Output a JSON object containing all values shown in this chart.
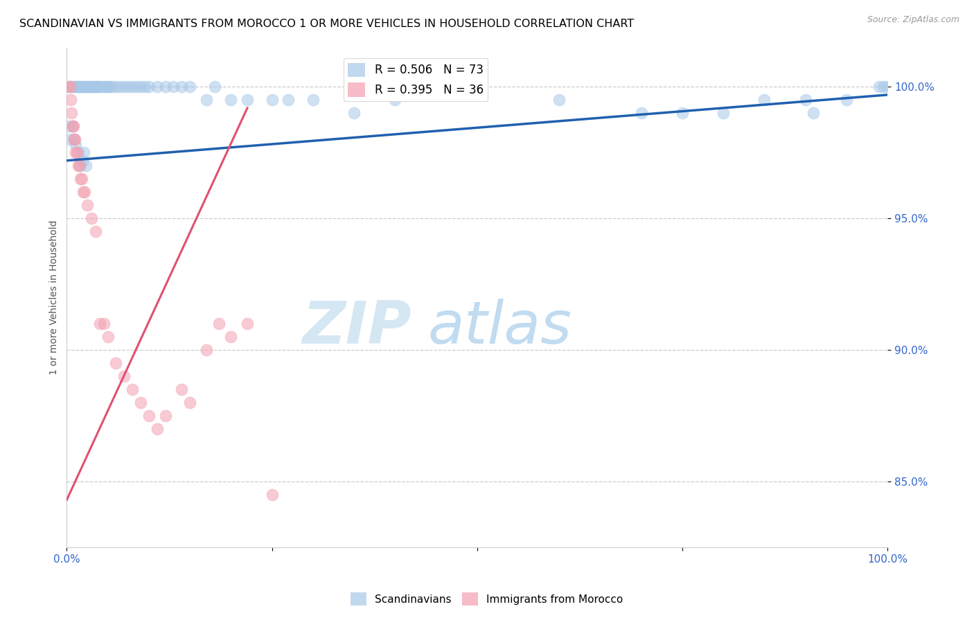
{
  "title": "SCANDINAVIAN VS IMMIGRANTS FROM MOROCCO 1 OR MORE VEHICLES IN HOUSEHOLD CORRELATION CHART",
  "source": "Source: ZipAtlas.com",
  "ylabel": "1 or more Vehicles in Household",
  "x_range": [
    0,
    100
  ],
  "y_range": [
    82.5,
    101.5
  ],
  "legend_blue_label": "R = 0.506   N = 73",
  "legend_pink_label": "R = 0.395   N = 36",
  "legend_bottom_blue": "Scandinavians",
  "legend_bottom_pink": "Immigrants from Morocco",
  "blue_color": "#a8c8e8",
  "pink_color": "#f4a0b0",
  "blue_line_color": "#2060b0",
  "pink_line_color": "#e05070",
  "watermark_zip": "ZIP",
  "watermark_atlas": "atlas",
  "y_ticks": [
    85,
    90,
    95,
    100
  ],
  "y_tick_labels": [
    "85.0%",
    "90.0%",
    "95.0%",
    "100.0%"
  ],
  "blue_scatter_x": [
    0.3,
    0.5,
    0.6,
    0.8,
    1.0,
    1.2,
    1.3,
    1.5,
    1.6,
    1.8,
    2.0,
    2.2,
    2.4,
    2.5,
    2.6,
    2.8,
    3.0,
    3.2,
    3.3,
    3.5,
    3.7,
    3.8,
    4.0,
    4.2,
    4.5,
    4.8,
    5.0,
    5.2,
    5.5,
    6.0,
    6.5,
    7.0,
    7.5,
    8.0,
    8.5,
    9.0,
    9.5,
    10.0,
    11.0,
    12.0,
    13.0,
    14.0,
    15.0,
    17.0,
    18.0,
    20.0,
    22.0,
    25.0,
    27.0,
    30.0,
    35.0,
    40.0,
    0.2,
    0.4,
    0.7,
    0.9,
    1.1,
    1.4,
    1.7,
    1.9,
    2.1,
    2.3,
    60.0,
    70.0,
    75.0,
    80.0,
    85.0,
    90.0,
    91.0,
    95.0,
    99.0,
    99.5,
    100.0
  ],
  "blue_scatter_y": [
    100.0,
    100.0,
    100.0,
    100.0,
    100.0,
    100.0,
    100.0,
    100.0,
    100.0,
    100.0,
    100.0,
    100.0,
    100.0,
    100.0,
    100.0,
    100.0,
    100.0,
    100.0,
    100.0,
    100.0,
    100.0,
    100.0,
    100.0,
    100.0,
    100.0,
    100.0,
    100.0,
    100.0,
    100.0,
    100.0,
    100.0,
    100.0,
    100.0,
    100.0,
    100.0,
    100.0,
    100.0,
    100.0,
    100.0,
    100.0,
    100.0,
    100.0,
    100.0,
    99.5,
    100.0,
    99.5,
    99.5,
    99.5,
    99.5,
    99.5,
    99.0,
    99.5,
    98.5,
    98.0,
    98.5,
    98.0,
    97.8,
    97.5,
    97.0,
    97.2,
    97.5,
    97.0,
    99.5,
    99.0,
    99.0,
    99.0,
    99.5,
    99.5,
    99.0,
    99.5,
    100.0,
    100.0,
    100.0
  ],
  "pink_scatter_x": [
    0.3,
    0.4,
    0.5,
    0.6,
    0.7,
    0.8,
    0.9,
    1.0,
    1.1,
    1.2,
    1.4,
    1.5,
    1.7,
    1.8,
    2.0,
    2.2,
    2.5,
    3.0,
    3.5,
    4.0,
    4.5,
    5.0,
    6.0,
    7.0,
    8.0,
    9.0,
    10.0,
    11.0,
    12.0,
    14.0,
    15.0,
    17.0,
    18.5,
    20.0,
    22.0,
    25.0
  ],
  "pink_scatter_y": [
    100.0,
    100.0,
    99.5,
    99.0,
    98.5,
    98.5,
    98.0,
    98.0,
    97.5,
    97.5,
    97.0,
    97.0,
    96.5,
    96.5,
    96.0,
    96.0,
    95.5,
    95.0,
    94.5,
    91.0,
    91.0,
    90.5,
    89.5,
    89.0,
    88.5,
    88.0,
    87.5,
    87.0,
    87.5,
    88.5,
    88.0,
    90.0,
    91.0,
    90.5,
    91.0,
    84.5
  ],
  "blue_line_x": [
    0,
    100
  ],
  "blue_line_y": [
    97.2,
    99.7
  ],
  "pink_line_x": [
    0,
    22
  ],
  "pink_line_y": [
    84.3,
    99.2
  ]
}
